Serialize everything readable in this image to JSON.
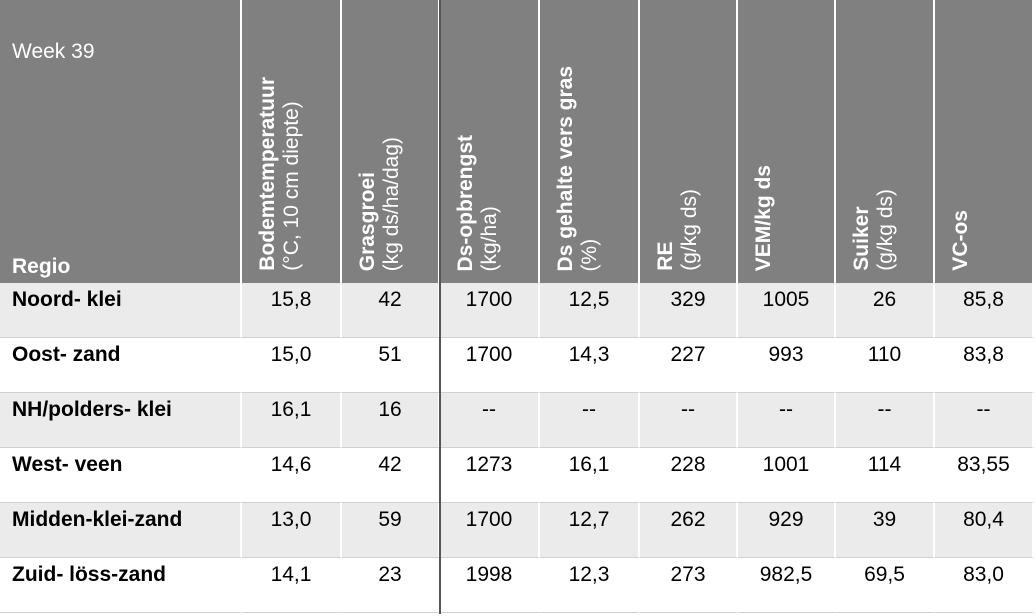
{
  "header": {
    "title": "Week 39",
    "row_label": "Regio",
    "columns": [
      {
        "name": "Bodemtemperatuur",
        "unit": "(°C, 10 cm diepte)"
      },
      {
        "name": "Grasgroei",
        "unit": "(kg ds/ha/dag)"
      },
      {
        "name": "Ds-opbrengst",
        "unit": "(kg/ha)"
      },
      {
        "name": "Ds gehalte vers gras",
        "unit": "(%)"
      },
      {
        "name": "RE",
        "unit": "(g/kg ds)"
      },
      {
        "name": "VEM/kg ds"
      },
      {
        "name": "Suiker",
        "unit": "(g/kg ds)"
      },
      {
        "name": "VC-os"
      }
    ]
  },
  "table": {
    "rows": [
      [
        "Noord- klei",
        "15,8",
        "42",
        "1700",
        "12,5",
        "329",
        "1005",
        "26",
        "85,8"
      ],
      [
        "Oost- zand",
        "15,0",
        "51",
        "1700",
        "14,3",
        "227",
        "993",
        "110",
        "83,8"
      ],
      [
        "NH/polders- klei",
        "16,1",
        "16",
        "--",
        "--",
        "--",
        "--",
        "--",
        "--"
      ],
      [
        "West- veen",
        "14,6",
        "42",
        "1273",
        "16,1",
        "228",
        "1001",
        "114",
        "83,55"
      ],
      [
        "Midden-klei-zand",
        "13,0",
        "59",
        "1700",
        "12,7",
        "262",
        "929",
        "39",
        "80,4"
      ],
      [
        "Zuid- löss-zand",
        "14,1",
        "23",
        "1998",
        "12,3",
        "273",
        "982,5",
        "69,5",
        "83,0"
      ]
    ]
  }
}
